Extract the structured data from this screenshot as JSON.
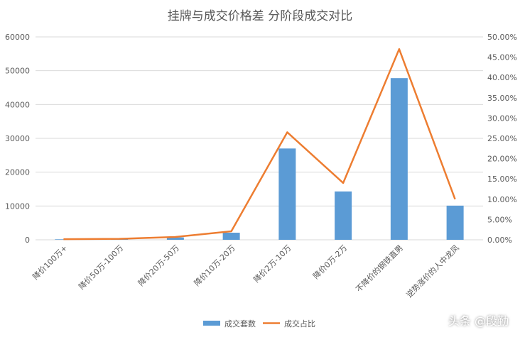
{
  "chart_data": {
    "type": "bar+line",
    "title": "挂牌与成交价格差  分阶段成交对比",
    "categories": [
      "降价100万+",
      "降价50万-100万",
      "降价20万-50万",
      "降价10万-20万",
      "降价2万-10万",
      "降价0万-2万",
      "不降价的钢铁直男",
      "逆势涨价的人中龙凤"
    ],
    "series": [
      {
        "name": "成交套数",
        "type": "bar",
        "axis": "left",
        "color": "#5b9bd5",
        "values": [
          150,
          250,
          700,
          2100,
          27000,
          14300,
          47800,
          10100
        ]
      },
      {
        "name": "成交占比",
        "type": "line",
        "axis": "right",
        "color": "#ed7d31",
        "values": [
          0.0015,
          0.0025,
          0.007,
          0.021,
          0.265,
          0.14,
          0.47,
          0.1
        ]
      }
    ],
    "y_left": {
      "min": 0,
      "max": 60000,
      "step": 10000,
      "ticks": [
        "0",
        "10000",
        "20000",
        "30000",
        "40000",
        "50000",
        "60000"
      ]
    },
    "y_right": {
      "min": 0,
      "max": 0.5,
      "step": 0.05,
      "ticks": [
        "0.00%",
        "5.00%",
        "10.00%",
        "15.00%",
        "20.00%",
        "25.00%",
        "30.00%",
        "35.00%",
        "40.00%",
        "45.00%",
        "50.00%"
      ]
    },
    "grid": true,
    "legend_position": "bottom"
  },
  "watermark": "头条 @段勤"
}
